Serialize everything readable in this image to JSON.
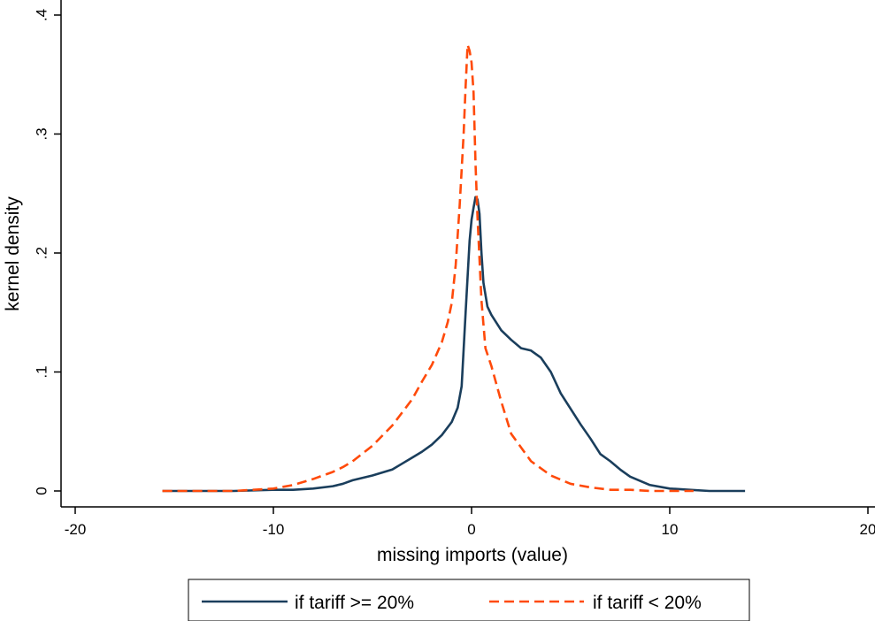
{
  "chart_data": {
    "type": "line",
    "title": "",
    "xlabel": "missing imports (value)",
    "ylabel": "kernel density",
    "xlim": [
      -20,
      20
    ],
    "ylim": [
      0,
      0.4
    ],
    "xticks": [
      -20,
      -10,
      0,
      10,
      20
    ],
    "xtick_labels": [
      "-20",
      "-10",
      "0",
      "10",
      "20"
    ],
    "yticks": [
      0,
      0.1,
      0.2,
      0.3,
      0.4
    ],
    "ytick_labels": [
      "0",
      ".1",
      ".2",
      ".3",
      ".4"
    ],
    "grid": false,
    "legend_position": "bottom",
    "series": [
      {
        "name": "if tariff >= 20%",
        "color": "#1a3e5c",
        "dash": "solid",
        "x": [
          -15.6,
          -14,
          -12,
          -10,
          -9,
          -8,
          -7,
          -6.5,
          -6,
          -5,
          -4,
          -3.5,
          -3,
          -2.5,
          -2,
          -1.5,
          -1.0,
          -0.7,
          -0.5,
          -0.3,
          -0.1,
          0.0,
          0.1,
          0.2,
          0.3,
          0.4,
          0.5,
          0.6,
          0.8,
          1.0,
          1.5,
          2.0,
          2.5,
          3.0,
          3.5,
          4.0,
          4.5,
          5.0,
          5.5,
          6.0,
          6.5,
          7.0,
          7.5,
          8.0,
          9.0,
          10.0,
          11.0,
          12.0,
          13.8
        ],
        "y": [
          0,
          0,
          0,
          0.001,
          0.001,
          0.002,
          0.004,
          0.006,
          0.009,
          0.013,
          0.018,
          0.023,
          0.028,
          0.033,
          0.039,
          0.047,
          0.058,
          0.07,
          0.088,
          0.15,
          0.21,
          0.228,
          0.238,
          0.247,
          0.245,
          0.233,
          0.2,
          0.175,
          0.155,
          0.148,
          0.135,
          0.127,
          0.12,
          0.118,
          0.112,
          0.1,
          0.082,
          0.069,
          0.056,
          0.044,
          0.031,
          0.025,
          0.018,
          0.012,
          0.005,
          0.002,
          0.001,
          0,
          0
        ]
      },
      {
        "name": "if tariff < 20%",
        "color": "#ff4a0a",
        "dash": "dashed",
        "x": [
          -15.6,
          -14,
          -12,
          -11,
          -10,
          -9,
          -8,
          -7,
          -6.5,
          -6,
          -5,
          -4,
          -3.5,
          -3,
          -2.5,
          -2,
          -1.5,
          -1.2,
          -1.0,
          -0.8,
          -0.6,
          -0.4,
          -0.3,
          -0.2,
          -0.1,
          0.0,
          0.1,
          0.2,
          0.3,
          0.5,
          0.7,
          1.0,
          1.5,
          2.0,
          3.0,
          4.0,
          5.0,
          6.0,
          7.0,
          8.0,
          9.0,
          10.0,
          11.2
        ],
        "y": [
          0,
          0,
          0,
          0.001,
          0.002,
          0.005,
          0.01,
          0.016,
          0.02,
          0.025,
          0.038,
          0.055,
          0.066,
          0.077,
          0.092,
          0.106,
          0.125,
          0.142,
          0.158,
          0.19,
          0.24,
          0.3,
          0.34,
          0.375,
          0.37,
          0.36,
          0.335,
          0.275,
          0.23,
          0.16,
          0.12,
          0.105,
          0.075,
          0.048,
          0.025,
          0.013,
          0.006,
          0.003,
          0.001,
          0.001,
          0,
          0,
          0
        ]
      }
    ]
  }
}
